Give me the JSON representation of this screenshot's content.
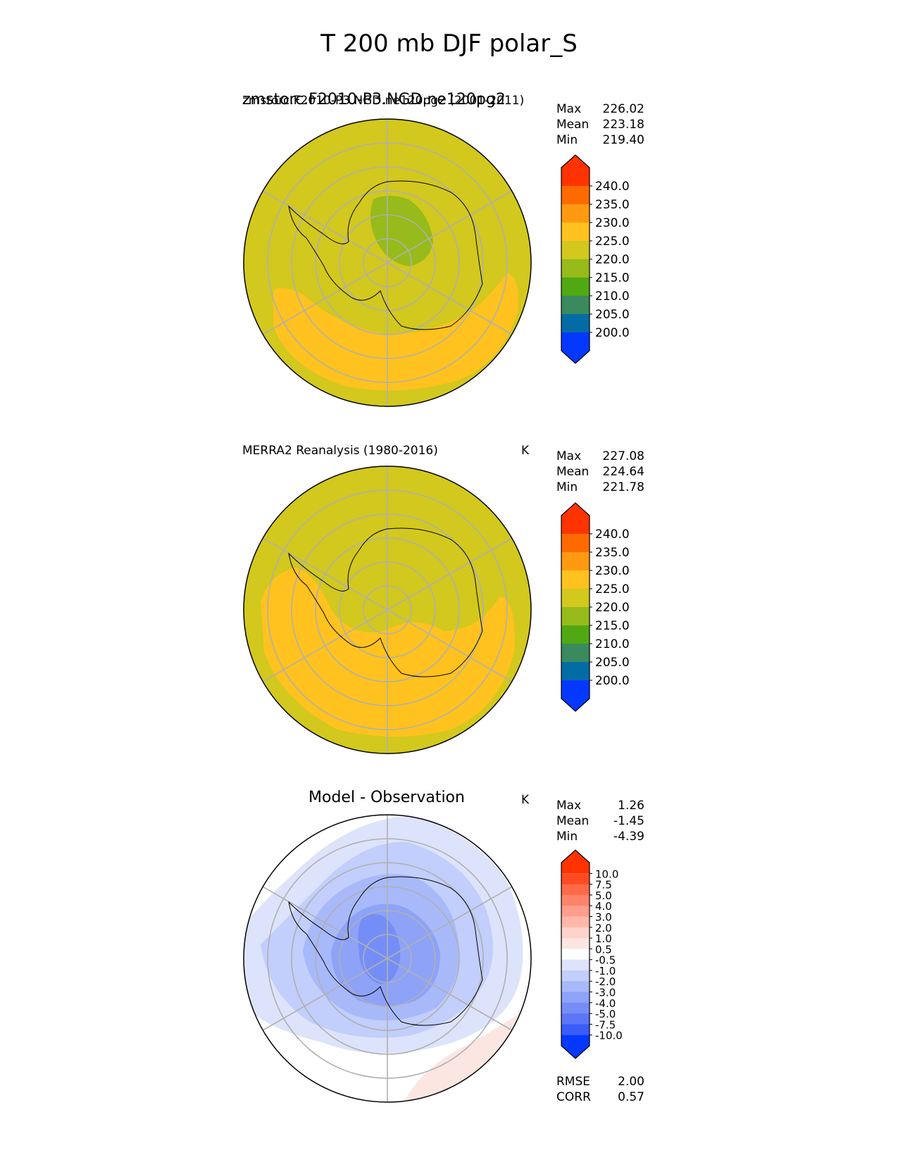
{
  "title": "T 200 mb DJF polar_S",
  "chart_data": [
    {
      "type": "heatmap",
      "projection": "south-polar-stereographic",
      "title_left": "zmstorc.F2010-P3.NGD.ne120pg2",
      "title_left_overlap": "zmstorc.F2010-P3.NGD.ne120pg2 (2001-2011)",
      "units": "K",
      "stats": {
        "max_label": "Max",
        "max": "226.02",
        "mean_label": "Mean",
        "mean": "223.18",
        "min_label": "Min",
        "min": "219.40"
      },
      "colorbar": {
        "ticks": [
          "240.0",
          "235.0",
          "230.0",
          "225.0",
          "220.0",
          "215.0",
          "210.0",
          "205.0",
          "200.0"
        ],
        "colors": [
          "#ff3300",
          "#ff6a00",
          "#ff9a10",
          "#ffc21e",
          "#d2c81e",
          "#96bb1a",
          "#50a912",
          "#3a8a5e",
          "#046ca4",
          "#0538ff"
        ]
      }
    },
    {
      "type": "heatmap",
      "projection": "south-polar-stereographic",
      "title_left": "MERRA2 Reanalysis (1980-2016)",
      "units": "K",
      "stats": {
        "max_label": "Max",
        "max": "227.08",
        "mean_label": "Mean",
        "mean": "224.64",
        "min_label": "Min",
        "min": "221.78"
      },
      "colorbar": {
        "ticks": [
          "240.0",
          "235.0",
          "230.0",
          "225.0",
          "220.0",
          "215.0",
          "210.0",
          "205.0",
          "200.0"
        ],
        "colors": [
          "#ff3300",
          "#ff6a00",
          "#ff9a10",
          "#ffc21e",
          "#d2c81e",
          "#96bb1a",
          "#50a912",
          "#3a8a5e",
          "#046ca4",
          "#0538ff"
        ]
      }
    },
    {
      "type": "heatmap",
      "projection": "south-polar-stereographic",
      "title_center": "Model - Observation",
      "units": "K",
      "stats": {
        "max_label": "Max",
        "max": "1.26",
        "mean_label": "Mean",
        "mean": "-1.45",
        "min_label": "Min",
        "min": "-4.39"
      },
      "metrics": {
        "rmse_label": "RMSE",
        "rmse": "2.00",
        "corr_label": "CORR",
        "corr": "0.57"
      },
      "colorbar": {
        "ticks": [
          "10.0",
          "7.5",
          "5.0",
          "4.0",
          "3.0",
          "2.0",
          "1.0",
          "0.5",
          "-0.5",
          "-1.0",
          "-2.0",
          "-3.0",
          "-4.0",
          "-5.0",
          "-7.5",
          "-10.0"
        ],
        "colors": [
          "#ff3300",
          "#ff4a22",
          "#ff6a48",
          "#ff836a",
          "#ff9e8c",
          "#ffb8aa",
          "#ffd3ca",
          "#fbe6e2",
          "#ffffff",
          "#dde3fb",
          "#c2cefb",
          "#a8b9fa",
          "#8ea2f8",
          "#758ef7",
          "#5b76f6",
          "#3a5cf8",
          "#0538ff"
        ]
      }
    }
  ]
}
